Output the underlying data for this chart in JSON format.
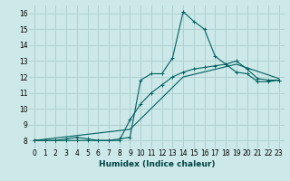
{
  "xlabel": "Humidex (Indice chaleur)",
  "bg_color": "#cce8e8",
  "grid_color": "#b0d0d0",
  "line_color": "#006060",
  "xlim": [
    -0.5,
    23.5
  ],
  "ylim": [
    7.5,
    16.5
  ],
  "xticks": [
    0,
    1,
    2,
    3,
    4,
    5,
    6,
    7,
    8,
    9,
    10,
    11,
    12,
    13,
    14,
    15,
    16,
    17,
    18,
    19,
    20,
    21,
    22,
    23
  ],
  "yticks": [
    8,
    9,
    10,
    11,
    12,
    13,
    14,
    15,
    16
  ],
  "series1": [
    [
      0,
      8.0
    ],
    [
      1,
      8.0
    ],
    [
      2,
      8.0
    ],
    [
      3,
      8.1
    ],
    [
      4,
      8.2
    ],
    [
      5,
      8.1
    ],
    [
      6,
      8.0
    ],
    [
      7,
      8.0
    ],
    [
      8,
      8.1
    ],
    [
      9,
      8.2
    ],
    [
      10,
      11.8
    ],
    [
      11,
      12.2
    ],
    [
      12,
      12.2
    ],
    [
      13,
      13.2
    ],
    [
      14,
      16.1
    ],
    [
      15,
      15.5
    ],
    [
      16,
      15.0
    ],
    [
      17,
      13.3
    ],
    [
      18,
      12.8
    ],
    [
      19,
      12.3
    ],
    [
      20,
      12.2
    ],
    [
      21,
      11.7
    ],
    [
      22,
      11.7
    ],
    [
      23,
      11.8
    ]
  ],
  "series2": [
    [
      0,
      8.0
    ],
    [
      1,
      8.0
    ],
    [
      2,
      8.0
    ],
    [
      3,
      8.0
    ],
    [
      4,
      8.0
    ],
    [
      5,
      8.0
    ],
    [
      6,
      8.0
    ],
    [
      7,
      8.0
    ],
    [
      8,
      8.0
    ],
    [
      9,
      9.3
    ],
    [
      10,
      10.3
    ],
    [
      11,
      11.0
    ],
    [
      12,
      11.5
    ],
    [
      13,
      12.0
    ],
    [
      14,
      12.3
    ],
    [
      15,
      12.5
    ],
    [
      16,
      12.6
    ],
    [
      17,
      12.7
    ],
    [
      18,
      12.8
    ],
    [
      19,
      13.0
    ],
    [
      20,
      12.5
    ],
    [
      21,
      11.9
    ],
    [
      22,
      11.8
    ],
    [
      23,
      11.8
    ]
  ],
  "series3": [
    [
      0,
      8.0
    ],
    [
      9,
      8.7
    ],
    [
      14,
      12.0
    ],
    [
      19,
      12.8
    ],
    [
      23,
      11.9
    ]
  ]
}
